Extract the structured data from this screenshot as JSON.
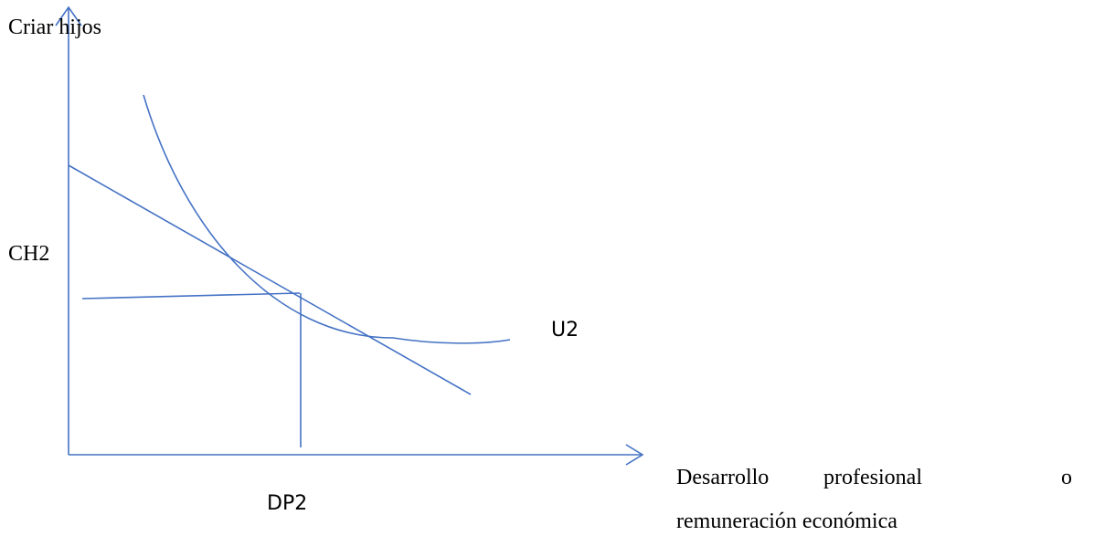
{
  "labels": {
    "y_axis": "Criar hijos",
    "ch": "CH2",
    "u": "U2",
    "dp": "DP2",
    "x_axis_line1_word1": "Desarrollo",
    "x_axis_line1_word2": "profesional",
    "x_axis_line1_word3": "o",
    "x_axis_line2": "remuneración económica"
  },
  "colors": {
    "line": "#4472c4",
    "text": "#000000"
  }
}
